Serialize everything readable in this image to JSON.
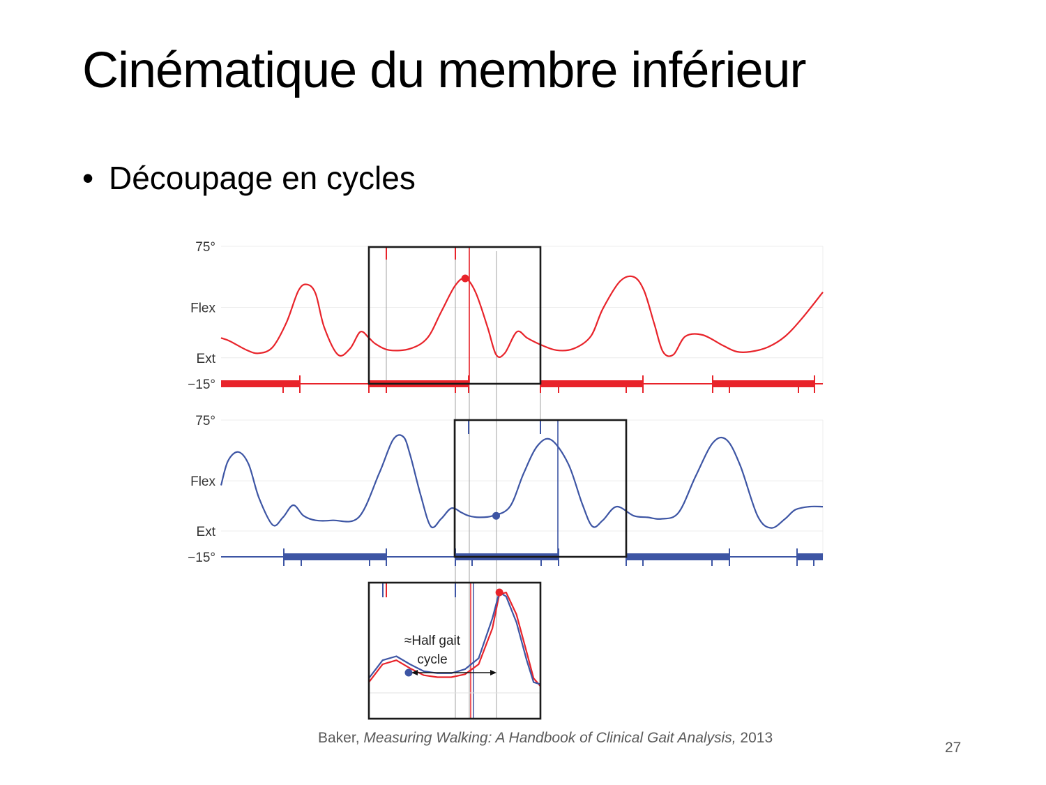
{
  "slide": {
    "title": "Cinématique du membre inférieur",
    "bullet": "Découpage en cycles",
    "citation_author": "Baker,",
    "citation_work": "Measuring Walking: A Handbook of Clinical Gait Analysis,",
    "citation_year": "2013",
    "page_number": "27"
  },
  "colors": {
    "red_series": "#e8232a",
    "blue_series": "#3d55a4",
    "frame": "#1a1a1a",
    "guide": "#b0b0b0"
  },
  "chart_data": [
    {
      "type": "line",
      "panel": "top",
      "ylim": [
        -15,
        75
      ],
      "y_tick_labels": [
        "75°",
        "Flex",
        "Ext",
        "−15°"
      ],
      "y_tick_values": [
        75,
        35,
        2,
        -15
      ],
      "xlim": [
        0,
        3.5
      ],
      "series": [
        {
          "color": "#e8232a",
          "x": [
            0,
            0.05,
            0.15,
            0.22,
            0.3,
            0.38,
            0.45,
            0.5,
            0.55,
            0.6,
            0.68,
            0.75,
            0.81,
            0.86,
            0.9,
            0.98,
            1.1,
            1.2,
            1.28,
            1.36,
            1.42,
            1.48,
            1.55,
            1.6,
            1.65,
            1.72,
            1.78,
            1.85,
            1.95,
            2.05,
            2.15,
            2.22,
            2.32,
            2.4,
            2.46,
            2.52,
            2.57,
            2.63,
            2.7,
            2.8,
            2.92,
            3.0,
            3.08,
            3.18,
            3.28,
            3.38,
            3.5
          ],
          "y": [
            15,
            13,
            7,
            5,
            9,
            25,
            46,
            50,
            44,
            22,
            4,
            8,
            19,
            15,
            11,
            7,
            8,
            15,
            32,
            49,
            54,
            45,
            22,
            4,
            5,
            19,
            15,
            11,
            7,
            8,
            16,
            34,
            52,
            55,
            46,
            24,
            6,
            4,
            16,
            17,
            10,
            6,
            6,
            9,
            16,
            28,
            45
          ]
        }
      ],
      "highlight_point": {
        "x": 1.42,
        "y": 54
      }
    },
    {
      "type": "line",
      "panel": "middle",
      "ylim": [
        -15,
        75
      ],
      "y_tick_labels": [
        "75°",
        "Flex",
        "Ext",
        "−15°"
      ],
      "y_tick_values": [
        75,
        35,
        2,
        -15
      ],
      "xlim": [
        0,
        3.5
      ],
      "series": [
        {
          "color": "#3d55a4",
          "x": [
            0,
            0.04,
            0.1,
            0.16,
            0.22,
            0.3,
            0.36,
            0.42,
            0.48,
            0.55,
            0.65,
            0.8,
            0.92,
            1.0,
            1.06,
            1.1,
            1.16,
            1.22,
            1.28,
            1.34,
            1.4,
            1.44,
            1.5,
            1.58,
            1.68,
            1.76,
            1.84,
            1.92,
            2.02,
            2.1,
            2.16,
            2.22,
            2.3,
            2.4,
            2.48,
            2.56,
            2.66,
            2.76,
            2.86,
            2.94,
            3.02,
            3.12,
            3.2,
            3.28,
            3.34,
            3.42,
            3.5
          ],
          "y": [
            32,
            48,
            54,
            46,
            24,
            6,
            11,
            19,
            12,
            9,
            9,
            11,
            40,
            62,
            64,
            52,
            26,
            5,
            10,
            17,
            14,
            12,
            11,
            12,
            18,
            40,
            58,
            62,
            46,
            20,
            5,
            9,
            18,
            12,
            11,
            10,
            14,
            38,
            60,
            62,
            45,
            12,
            4,
            10,
            16,
            18,
            18
          ]
        }
      ],
      "highlight_point": {
        "x": 1.6,
        "y": 12
      }
    },
    {
      "type": "line",
      "panel": "inset",
      "annotations": [
        "≈Half gait",
        "cycle"
      ],
      "x": [
        0,
        0.08,
        0.16,
        0.24,
        0.32,
        0.4,
        0.48,
        0.56,
        0.64,
        0.72,
        0.76,
        0.8,
        0.86,
        0.92,
        0.96,
        1.0
      ],
      "series": [
        {
          "color": "#e8232a",
          "y": [
            10,
            28,
            32,
            24,
            17,
            15,
            15,
            18,
            28,
            64,
            98,
            100,
            78,
            40,
            14,
            6
          ]
        },
        {
          "color": "#3d55a4",
          "y": [
            14,
            32,
            36,
            28,
            21,
            19,
            19,
            23,
            34,
            74,
            100,
            96,
            70,
            32,
            10,
            8
          ]
        }
      ]
    }
  ]
}
